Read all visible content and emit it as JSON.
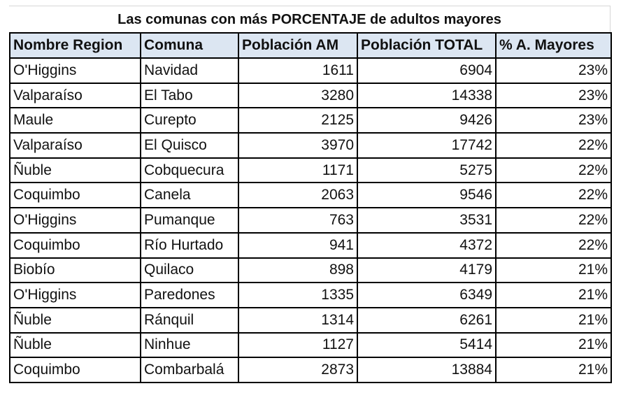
{
  "table": {
    "title": "Las comunas con más PORCENTAJE de adultos mayores",
    "columns": [
      "Nombre Region",
      "Comuna",
      "Población AM",
      "Población TOTAL",
      "% A. Mayores"
    ],
    "rows": [
      [
        "O'Higgins",
        "Navidad",
        "1611",
        "6904",
        "23%"
      ],
      [
        "Valparaíso",
        "El Tabo",
        "3280",
        "14338",
        "23%"
      ],
      [
        "Maule",
        "Curepto",
        "2125",
        "9426",
        "23%"
      ],
      [
        "Valparaíso",
        "El Quisco",
        "3970",
        "17742",
        "22%"
      ],
      [
        "Ñuble",
        "Cobquecura",
        "1171",
        "5275",
        "22%"
      ],
      [
        "Coquimbo",
        "Canela",
        "2063",
        "9546",
        "22%"
      ],
      [
        "O'Higgins",
        "Pumanque",
        "763",
        "3531",
        "22%"
      ],
      [
        "Coquimbo",
        "Río Hurtado",
        "941",
        "4372",
        "22%"
      ],
      [
        "Biobío",
        "Quilaco",
        "898",
        "4179",
        "21%"
      ],
      [
        "O'Higgins",
        "Paredones",
        "1335",
        "6349",
        "21%"
      ],
      [
        "Ñuble",
        "Ránquil",
        "1314",
        "6261",
        "21%"
      ],
      [
        "Ñuble",
        "Ninhue",
        "1127",
        "5414",
        "21%"
      ],
      [
        "Coquimbo",
        "Combarbalá",
        "2873",
        "13884",
        "21%"
      ]
    ]
  }
}
